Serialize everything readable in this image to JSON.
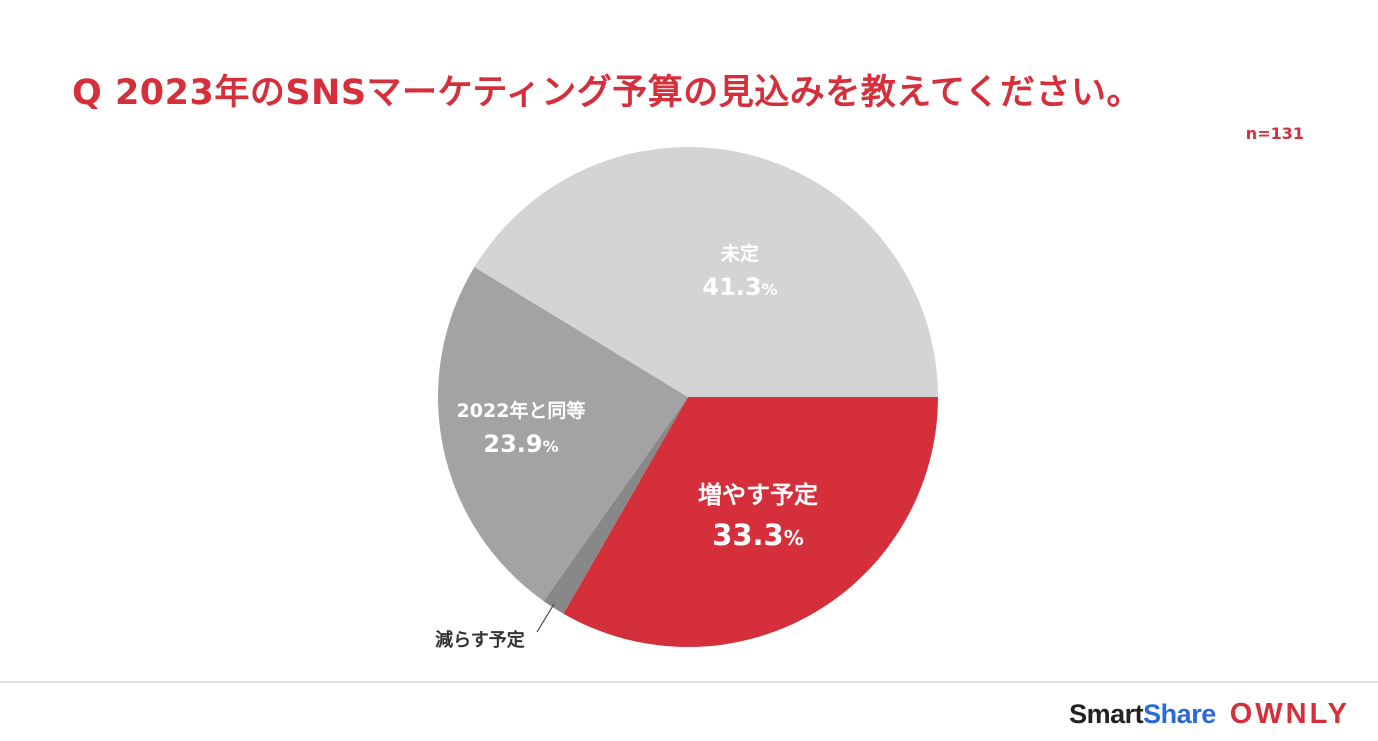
{
  "header": {
    "title": "Q 2023年のSNSマーケティング予算の見込みを教えてください。",
    "sample_size": "n=131"
  },
  "chart_data": {
    "type": "pie",
    "title": "Q 2023年のSNSマーケティング予算の見込みを教えてください。",
    "slices": [
      {
        "label": "増やす予定",
        "value": 33.3,
        "value_text": "33.3",
        "unit": "%",
        "color": "#d62f3c"
      },
      {
        "label": "減らす予定",
        "value": 1.5,
        "value_text": "",
        "unit": "",
        "color": "#888888"
      },
      {
        "label": "2022年と同等",
        "value": 23.9,
        "value_text": "23.9",
        "unit": "%",
        "color": "#a3a3a3"
      },
      {
        "label": "未定",
        "value": 41.3,
        "value_text": "41.3",
        "unit": "%",
        "color": "#d4d4d4"
      }
    ],
    "start": "3 o'clock, clockwise"
  },
  "footer": {
    "brand_smart": "Smart",
    "brand_share": "Share",
    "brand_ownly": "OWNLY"
  }
}
